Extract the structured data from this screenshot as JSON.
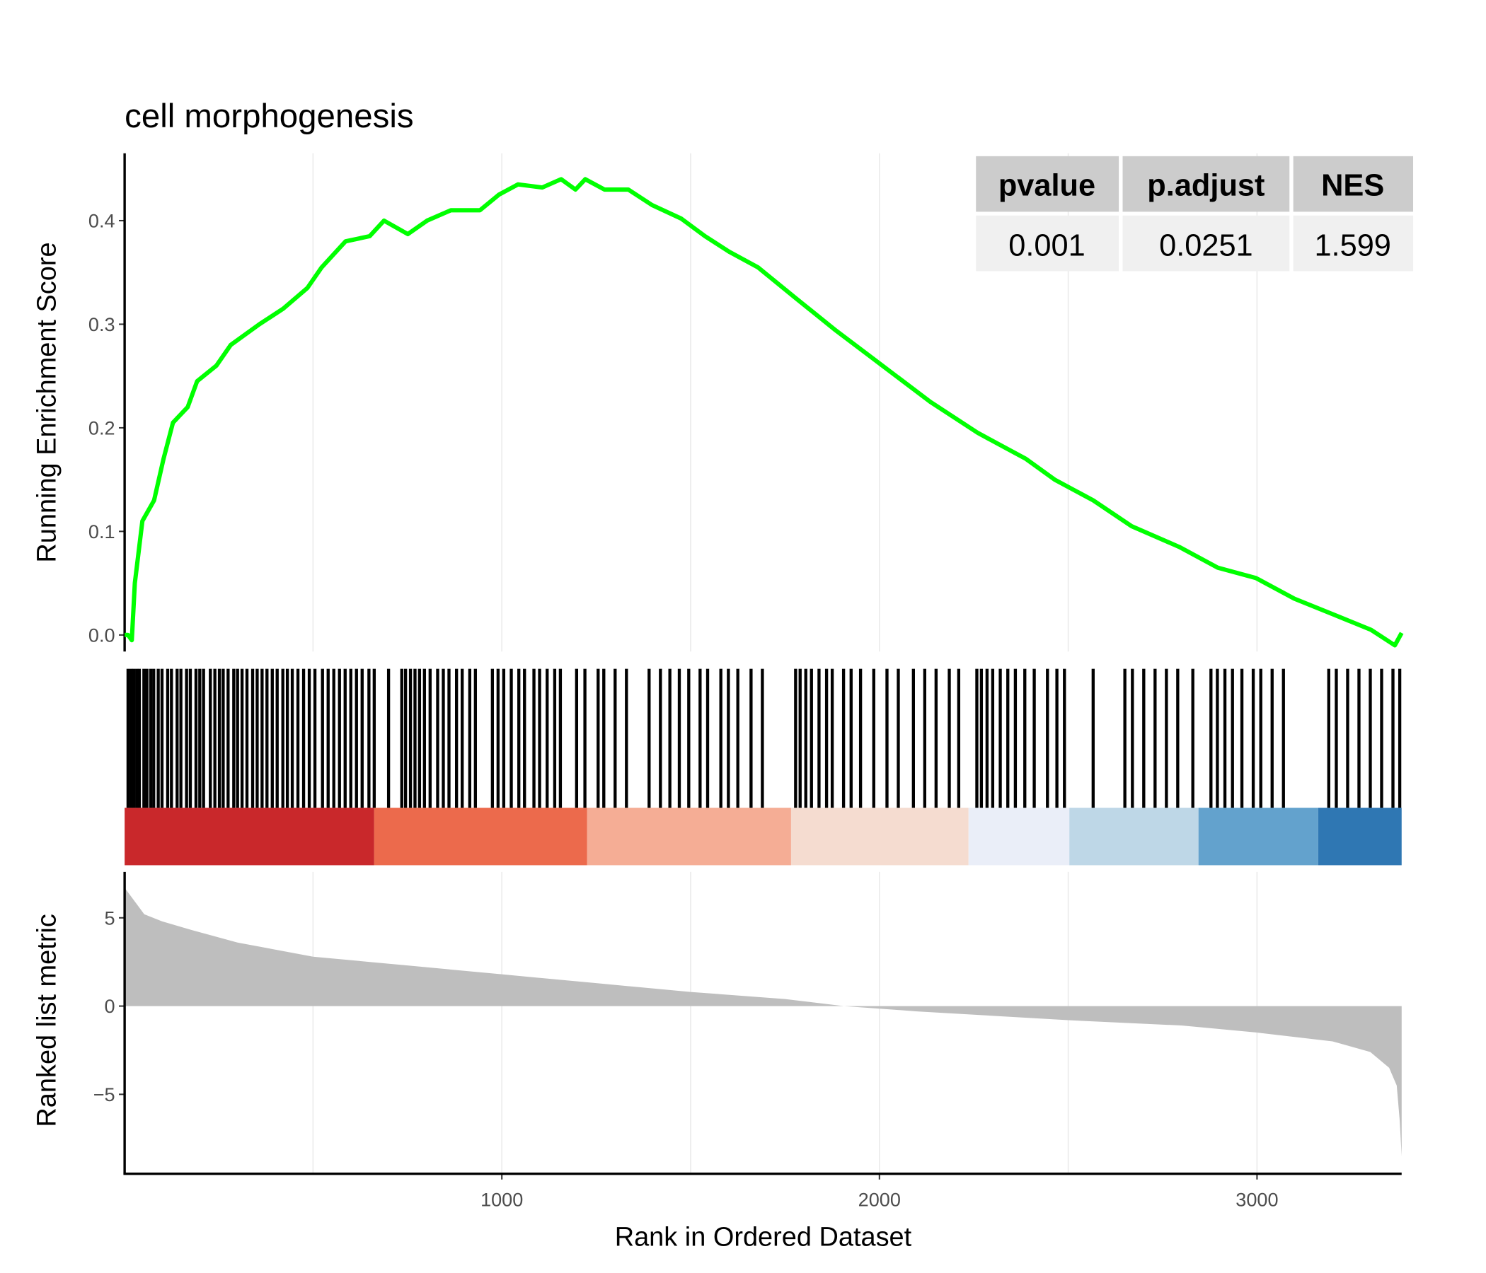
{
  "chart_data": [
    {
      "type": "line",
      "title": "cell morphogenesis",
      "ylabel": "Running Enrichment Score",
      "color": "#00ff00",
      "x": [
        1,
        10,
        20,
        28,
        48,
        79,
        104,
        129,
        168,
        193,
        244,
        282,
        358,
        421,
        485,
        523,
        586,
        650,
        688,
        751,
        802,
        865,
        942,
        992,
        1043,
        1107,
        1157,
        1195,
        1221,
        1272,
        1335,
        1398,
        1475,
        1538,
        1602,
        1678,
        1779,
        1881,
        2008,
        2135,
        2261,
        2388,
        2464,
        2566,
        2668,
        2794,
        2896,
        2997,
        3099,
        3201,
        3302,
        3365,
        3383
      ],
      "values": [
        0,
        0,
        -0.005,
        0.05,
        0.11,
        0.13,
        0.17,
        0.205,
        0.22,
        0.245,
        0.26,
        0.28,
        0.3,
        0.315,
        0.335,
        0.355,
        0.38,
        0.385,
        0.4,
        0.387,
        0.4,
        0.41,
        0.41,
        0.425,
        0.435,
        0.432,
        0.44,
        0.43,
        0.44,
        0.43,
        0.43,
        0.415,
        0.402,
        0.385,
        0.37,
        0.355,
        0.325,
        0.295,
        0.26,
        0.225,
        0.195,
        0.17,
        0.15,
        0.13,
        0.105,
        0.085,
        0.065,
        0.055,
        0.035,
        0.02,
        0.005,
        -0.01,
        0.002
      ],
      "xlim": [
        1,
        3383
      ],
      "ylim": [
        -0.016,
        0.465
      ],
      "yticks": [
        {
          "value": 0,
          "label": "0.0"
        },
        0.1,
        0.2,
        0.3,
        0.4
      ],
      "xgrid": [
        500,
        1000,
        1500,
        2000,
        2500,
        3000
      ]
    },
    {
      "type": "rug",
      "color": "#000000",
      "xlim": [
        1,
        3383
      ],
      "x": [
        10,
        18,
        25,
        33,
        40,
        52,
        60,
        70,
        78,
        90,
        100,
        115,
        125,
        140,
        150,
        165,
        175,
        190,
        200,
        210,
        228,
        240,
        252,
        262,
        275,
        290,
        300,
        312,
        325,
        340,
        352,
        365,
        378,
        392,
        405,
        420,
        432,
        445,
        460,
        475,
        490,
        505,
        525,
        540,
        555,
        570,
        585,
        600,
        615,
        630,
        648,
        662,
        700,
        735,
        745,
        758,
        770,
        782,
        795,
        810,
        830,
        845,
        860,
        880,
        895,
        915,
        930,
        975,
        990,
        1005,
        1025,
        1045,
        1060,
        1085,
        1100,
        1120,
        1140,
        1155,
        1198,
        1220,
        1255,
        1270,
        1300,
        1330,
        1390,
        1420,
        1445,
        1470,
        1495,
        1525,
        1545,
        1580,
        1600,
        1625,
        1660,
        1690,
        1778,
        1790,
        1805,
        1820,
        1840,
        1860,
        1875,
        1905,
        1925,
        1950,
        1985,
        2020,
        2050,
        2090,
        2120,
        2150,
        2185,
        2210,
        2258,
        2270,
        2285,
        2300,
        2320,
        2340,
        2360,
        2385,
        2410,
        2445,
        2470,
        2490,
        2566,
        2650,
        2670,
        2700,
        2730,
        2760,
        2790,
        2830,
        2878,
        2895,
        2915,
        2935,
        2960,
        2990,
        3010,
        3040,
        3070,
        3190,
        3210,
        3240,
        3270,
        3300,
        3330,
        3360,
        3378
      ],
      "band_breaks": [
        1,
        662,
        1226,
        1766,
        2236,
        2503,
        2845,
        3162,
        3383
      ],
      "band_colors": [
        "#c9282b",
        "#ec6a4c",
        "#f5ad95",
        "#f5dcd0",
        "#eaeef8",
        "#bed7e7",
        "#63a2cd",
        "#2f77b3"
      ]
    },
    {
      "type": "area",
      "ylabel": "Ranked list metric",
      "xlabel": "Rank in Ordered Dataset",
      "color": "#bebebe",
      "x": [
        1,
        15,
        53,
        100,
        180,
        300,
        500,
        750,
        1000,
        1250,
        1500,
        1750,
        1906,
        2100,
        2500,
        2800,
        3000,
        3200,
        3300,
        3350,
        3370,
        3378,
        3383
      ],
      "values": [
        6.7,
        6.3,
        5.2,
        4.8,
        4.3,
        3.6,
        2.8,
        2.3,
        1.8,
        1.3,
        0.8,
        0.4,
        0,
        -0.3,
        -0.8,
        -1.1,
        -1.5,
        -2.0,
        -2.6,
        -3.5,
        -4.5,
        -6.5,
        -8.5
      ],
      "xlim": [
        1,
        3383
      ],
      "ylim": [
        -9.5,
        7.6
      ],
      "yticks": [
        {
          "value": -5,
          "label": "−5"
        },
        0,
        5
      ],
      "xticks": [
        1000,
        2000,
        3000
      ],
      "xgrid": [
        500,
        1000,
        1500,
        2000,
        2500,
        3000
      ]
    }
  ],
  "table": {
    "header": [
      "pvalue",
      "p.adjust",
      "NES"
    ],
    "rows": [
      [
        "0.001",
        "0.0251",
        "1.599"
      ]
    ]
  }
}
